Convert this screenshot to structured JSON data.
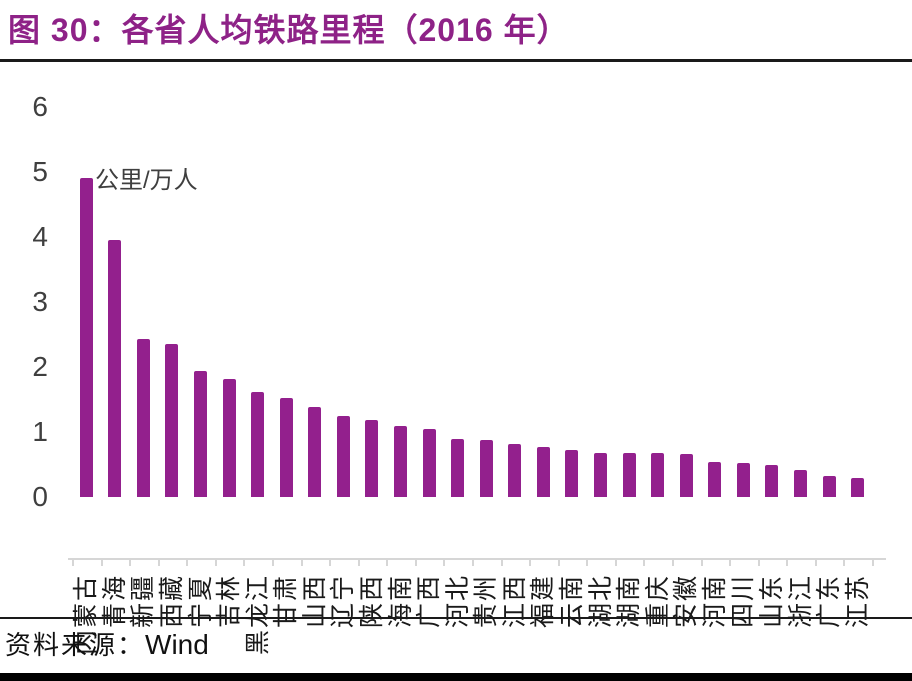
{
  "header": {
    "figure_title": "图 30：各省人均铁路里程（2016 年）"
  },
  "chart_data": {
    "type": "bar",
    "title": "各省人均铁路里程（2016 年）",
    "unit_label": "公里/万人",
    "ylabel": "公里/万人",
    "xlabel": "",
    "categories": [
      "内蒙古",
      "青海",
      "新疆",
      "西藏",
      "宁夏",
      "吉林",
      "黑龙江",
      "甘肃",
      "山西",
      "辽宁",
      "陕西",
      "海南",
      "广西",
      "河北",
      "贵州",
      "江西",
      "福建",
      "云南",
      "湖北",
      "湖南",
      "重庆",
      "安徽",
      "河南",
      "四川",
      "山东",
      "浙江",
      "广东",
      "江苏"
    ],
    "values": [
      4.91,
      3.96,
      2.43,
      2.35,
      1.94,
      1.82,
      1.62,
      1.53,
      1.38,
      1.24,
      1.18,
      1.09,
      1.04,
      0.89,
      0.87,
      0.82,
      0.77,
      0.73,
      0.68,
      0.67,
      0.67,
      0.66,
      0.54,
      0.53,
      0.5,
      0.41,
      0.33,
      0.3
    ],
    "ylim": [
      0,
      6
    ],
    "yticks": [
      0,
      1,
      2,
      3,
      4,
      5,
      6
    ],
    "grid": "off",
    "legend": "none",
    "bar_color": "#93208D"
  },
  "footer": {
    "source_label": "资料来源：",
    "source_value": "Wind"
  },
  "colors": {
    "title_purple": "#8E2287",
    "bar_purple": "#93208D",
    "axis_text_gray": "#3F3F3F",
    "axis_line_gray": "#D6D6D6",
    "rule_black": "#1a1a1a"
  }
}
